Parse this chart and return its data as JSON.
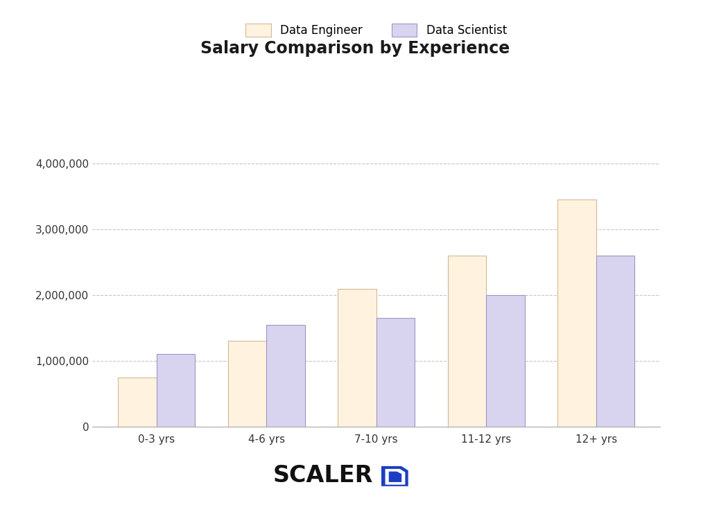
{
  "title": "Salary Comparison by Experience",
  "categories": [
    "0-3 yrs",
    "4-6 yrs",
    "7-10 yrs",
    "11-12 yrs",
    "12+ yrs"
  ],
  "data_engineer": [
    750000,
    1300000,
    2100000,
    2600000,
    3450000
  ],
  "data_scientist": [
    1100000,
    1550000,
    1650000,
    2000000,
    2600000
  ],
  "bar_color_engineer": "#FFF3E0",
  "bar_color_scientist": "#D8D4F0",
  "bar_edgecolor_engineer": "#D4B896",
  "bar_edgecolor_scientist": "#9B96C4",
  "legend_label_engineer": "Data Engineer",
  "legend_label_scientist": "Data Scientist",
  "ylim": [
    0,
    4300000
  ],
  "yticks": [
    0,
    1000000,
    2000000,
    3000000,
    4000000
  ],
  "ytick_labels": [
    "0",
    "1,000,000",
    "2,000,000",
    "3,000,000",
    "4,000,000"
  ],
  "background_color": "#ffffff",
  "grid_color": "#bbbbbb",
  "title_fontsize": 17,
  "tick_fontsize": 11,
  "legend_fontsize": 12,
  "bar_width": 0.35,
  "scaler_text": "SCALER",
  "scaler_text_color": "#111111",
  "scaler_icon_color": "#1a3fc4"
}
